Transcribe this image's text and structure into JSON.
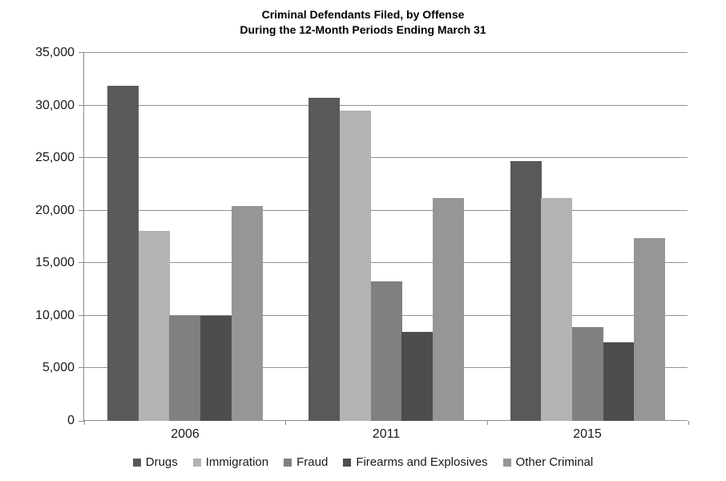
{
  "chart_data": {
    "type": "bar",
    "title_line1": "Criminal Defendants Filed, by Offense",
    "title_line2": "During the 12-Month Periods Ending March 31",
    "categories": [
      "2006",
      "2011",
      "2015"
    ],
    "series": [
      {
        "name": "Drugs",
        "color": "#595959",
        "values": [
          31900,
          30700,
          24700
        ]
      },
      {
        "name": "Immigration",
        "color": "#b3b3b3",
        "values": [
          18100,
          29500,
          21200
        ]
      },
      {
        "name": "Fraud",
        "color": "#808080",
        "values": [
          10000,
          13300,
          8900
        ]
      },
      {
        "name": "Firearms and Explosives",
        "color": "#4d4d4d",
        "values": [
          10000,
          8500,
          7500
        ]
      },
      {
        "name": "Other Criminal",
        "color": "#969696",
        "values": [
          20400,
          21200,
          17400
        ]
      }
    ],
    "ylim": [
      0,
      35000
    ],
    "y_ticks": [
      0,
      5000,
      10000,
      15000,
      20000,
      25000,
      30000,
      35000
    ],
    "y_tick_labels": [
      "0",
      "5,000",
      "10,000",
      "15,000",
      "20,000",
      "25,000",
      "30,000",
      "35,000"
    ],
    "xlabel": "",
    "ylabel": "",
    "grid": true,
    "legend_position": "bottom",
    "axis_color": "#8c8c8c",
    "gridline_color": "#909090"
  }
}
